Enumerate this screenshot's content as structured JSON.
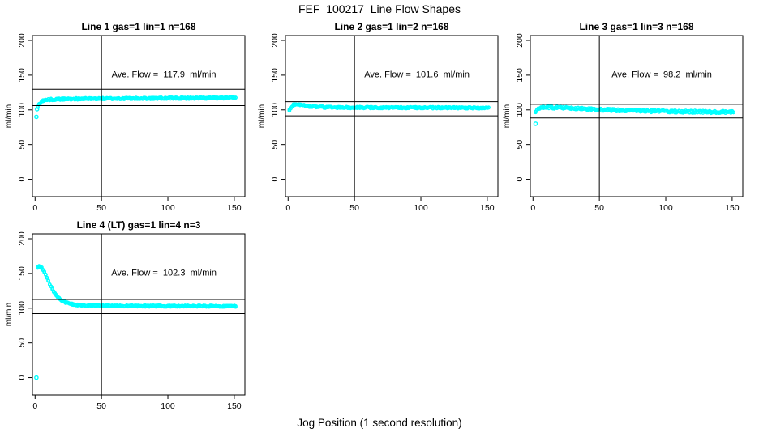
{
  "figure": {
    "title": "FEF_100217  Line Flow Shapes",
    "xlabel": "Jog Position (1 second resolution)",
    "background_color": "#FFFFFF",
    "axis_color": "#000000",
    "marker_color": "#00FFFF"
  },
  "chart_data": {
    "type": "scatter",
    "title": "FEF_100217  Line Flow Shapes",
    "xlabel": "Jog Position (1 second resolution)",
    "ylabel": "ml/min",
    "xlim": [
      -2,
      158
    ],
    "ylim": [
      -25,
      207
    ],
    "xticks": [
      0,
      50,
      100,
      150
    ],
    "yticks": [
      0,
      50,
      100,
      150,
      200
    ],
    "grid": false,
    "legend": "none",
    "marker": "open-circle",
    "marker_color": "#00FFFF",
    "panels": [
      {
        "title": "Line 1 gas=1 lin=1 n=168",
        "gas": 1,
        "lin": 1,
        "n": 168,
        "annotation": "Ave. Flow =  117.9  ml/min",
        "ave_flow_ml_min": 117.9,
        "vline_x": 50,
        "hlines": [
          129.7,
          106.1
        ],
        "band": 1.2,
        "outliers": [
          [
            1,
            90
          ],
          [
            1.5,
            101
          ]
        ],
        "points": [
          [
            2,
            104
          ],
          [
            3,
            108
          ],
          [
            4,
            110.5
          ],
          [
            5,
            112
          ],
          [
            6,
            113.2
          ],
          [
            8,
            114.2
          ],
          [
            10,
            114.8
          ],
          [
            15,
            115.3
          ],
          [
            20,
            115.6
          ],
          [
            30,
            115.9
          ],
          [
            50,
            116.2
          ],
          [
            75,
            116.5
          ],
          [
            100,
            116.8
          ],
          [
            125,
            117
          ],
          [
            151,
            117.2
          ]
        ]
      },
      {
        "title": "Line 2 gas=1 lin=2 n=168",
        "gas": 1,
        "lin": 2,
        "n": 168,
        "annotation": "Ave. Flow =  101.6  ml/min",
        "ave_flow_ml_min": 101.6,
        "vline_x": 50,
        "hlines": [
          111.8,
          91.4
        ],
        "band": 1.2,
        "outliers": [],
        "points": [
          [
            1,
            99.5
          ],
          [
            2,
            103
          ],
          [
            3,
            105.5
          ],
          [
            4,
            107
          ],
          [
            5,
            107.8
          ],
          [
            7,
            108
          ],
          [
            9,
            107.3
          ],
          [
            12,
            106.3
          ],
          [
            15,
            105.4
          ],
          [
            20,
            104.5
          ],
          [
            25,
            104
          ],
          [
            30,
            103.7
          ],
          [
            40,
            103.4
          ],
          [
            60,
            103.3
          ],
          [
            100,
            103.2
          ],
          [
            151,
            103
          ]
        ]
      },
      {
        "title": "Line 3 gas=1 lin=3 n=168",
        "gas": 1,
        "lin": 3,
        "n": 168,
        "annotation": "Ave. Flow =  98.2  ml/min",
        "ave_flow_ml_min": 98.2,
        "vline_x": 50,
        "hlines": [
          108.0,
          88.4
        ],
        "band": 1.8,
        "outliers": [
          [
            2,
            80
          ]
        ],
        "points": [
          [
            2,
            97
          ],
          [
            3,
            100.5
          ],
          [
            4,
            102.2
          ],
          [
            5,
            103.2
          ],
          [
            7,
            103.9
          ],
          [
            10,
            103.9
          ],
          [
            15,
            103.5
          ],
          [
            20,
            103
          ],
          [
            30,
            102.1
          ],
          [
            40,
            101.2
          ],
          [
            50,
            100.4
          ],
          [
            60,
            99.7
          ],
          [
            75,
            98.9
          ],
          [
            90,
            98.2
          ],
          [
            105,
            97.7
          ],
          [
            120,
            97.3
          ],
          [
            151,
            96.8
          ]
        ]
      },
      {
        "title": "Line 4 (LT) gas=1 lin=4 n=3",
        "gas": 1,
        "lin": 4,
        "n": 3,
        "annotation": "Ave. Flow =  102.3  ml/min",
        "ave_flow_ml_min": 102.3,
        "vline_x": 50,
        "hlines": [
          112.5,
          92.1
        ],
        "band": 1.0,
        "outliers": [
          [
            1,
            0
          ]
        ],
        "points": [
          [
            2,
            159
          ],
          [
            3,
            160
          ],
          [
            4,
            159.5
          ],
          [
            5,
            158
          ],
          [
            6,
            155.5
          ],
          [
            7,
            152
          ],
          [
            8,
            148
          ],
          [
            9,
            144
          ],
          [
            10,
            139.5
          ],
          [
            11,
            135
          ],
          [
            12,
            131
          ],
          [
            13,
            127.5
          ],
          [
            14,
            124
          ],
          [
            15,
            121
          ],
          [
            16,
            118.5
          ],
          [
            17,
            116.3
          ],
          [
            18,
            114.3
          ],
          [
            19,
            112.7
          ],
          [
            20,
            111.2
          ],
          [
            22,
            109
          ],
          [
            24,
            107.6
          ],
          [
            26,
            106.5
          ],
          [
            28,
            105.7
          ],
          [
            30,
            105
          ],
          [
            35,
            104.2
          ],
          [
            40,
            103.8
          ],
          [
            50,
            103.5
          ],
          [
            60,
            103.3
          ],
          [
            75,
            103.1
          ],
          [
            100,
            103
          ],
          [
            125,
            102.9
          ],
          [
            151,
            102.8
          ]
        ]
      }
    ]
  }
}
